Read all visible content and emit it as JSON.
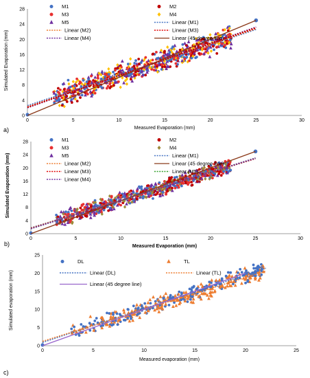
{
  "chart_data": [
    {
      "panel_label": "a)",
      "type": "scatter",
      "xlabel": "Measured Evaporation (mm)",
      "ylabel": "Simulated Evaporation (mm)",
      "xlim": [
        0,
        30
      ],
      "ylim": [
        0,
        28
      ],
      "xticks": [
        0,
        5,
        10,
        15,
        20,
        25,
        30
      ],
      "yticks": [
        0,
        4,
        8,
        12,
        16,
        20,
        24,
        28
      ],
      "grid": false,
      "legend_placement": "top",
      "series": [
        {
          "name": "M1",
          "kind": "scatter",
          "marker": "circle",
          "color": "#4472C4",
          "fit": [
            0.8,
            2.6
          ],
          "spread": 1.6
        },
        {
          "name": "M2",
          "kind": "scatter",
          "marker": "circle",
          "color": "#C00000",
          "fit": [
            0.82,
            2.3
          ],
          "spread": 1.6
        },
        {
          "name": "M3",
          "kind": "scatter",
          "marker": "circle",
          "color": "#E83030",
          "fit": [
            0.83,
            2.2
          ],
          "spread": 1.6
        },
        {
          "name": "M4",
          "kind": "scatter",
          "marker": "diamond",
          "color": "#FFC000",
          "fit": [
            0.85,
            2.0
          ],
          "spread": 1.7
        },
        {
          "name": "M5",
          "kind": "scatter",
          "marker": "triangle",
          "color": "#7030A0",
          "fit": [
            0.84,
            2.1
          ],
          "spread": 1.9
        },
        {
          "name": "Linear (M1)",
          "kind": "line",
          "dash": "dotted",
          "color": "#4472C4",
          "slope": 0.8,
          "intercept": 2.6,
          "x_range": [
            0,
            25
          ]
        },
        {
          "name": "Linear (M2)",
          "kind": "line",
          "dash": "dotted",
          "color": "#ED7D31",
          "slope": 0.82,
          "intercept": 2.3,
          "x_range": [
            0,
            25
          ]
        },
        {
          "name": "Linear (M3)",
          "kind": "line",
          "dash": "dotted",
          "color": "#E00000",
          "slope": 0.83,
          "intercept": 2.2,
          "x_range": [
            0,
            25
          ]
        },
        {
          "name": "Linear (M4)",
          "kind": "line",
          "dash": "dotted",
          "color": "#7030A0",
          "slope": 0.85,
          "intercept": 2.0,
          "x_range": [
            0,
            25
          ]
        },
        {
          "name": "Linear (M5)",
          "kind": "line",
          "dash": "dotted",
          "color": "#C00000",
          "slope": 0.84,
          "intercept": 2.1,
          "x_range": [
            0,
            25
          ],
          "legend": false
        },
        {
          "name": "Linear (45 degree line)",
          "kind": "line",
          "dash": "solid",
          "color": "#8B3A1A",
          "slope": 1,
          "intercept": 0,
          "x_range": [
            0,
            25
          ]
        }
      ]
    },
    {
      "panel_label": "b)",
      "type": "scatter",
      "xlabel": "Measured Evaporation (mm)",
      "ylabel": "Simulated Evaporation (mm)",
      "bold_titles": true,
      "xlim": [
        0,
        30
      ],
      "ylim": [
        0,
        28
      ],
      "xticks": [
        0,
        5,
        10,
        15,
        20,
        25,
        30
      ],
      "yticks": [
        0,
        4,
        8,
        12,
        16,
        20,
        24,
        28
      ],
      "grid": false,
      "legend_placement": "top",
      "series": [
        {
          "name": "M1",
          "kind": "scatter",
          "marker": "circle",
          "color": "#4472C4",
          "fit": [
            0.84,
            1.8
          ],
          "spread": 1.3
        },
        {
          "name": "M2",
          "kind": "scatter",
          "marker": "circle",
          "color": "#C00000",
          "fit": [
            0.85,
            1.7
          ],
          "spread": 1.3
        },
        {
          "name": "M3",
          "kind": "scatter",
          "marker": "circle",
          "color": "#E83030",
          "fit": [
            0.85,
            1.6
          ],
          "spread": 1.3
        },
        {
          "name": "M4",
          "kind": "scatter",
          "marker": "diamond",
          "color": "#9C8A3A",
          "fit": [
            0.86,
            1.5
          ],
          "spread": 1.3
        },
        {
          "name": "M5",
          "kind": "scatter",
          "marker": "triangle",
          "color": "#7030A0",
          "fit": [
            0.86,
            1.5
          ],
          "spread": 1.5
        },
        {
          "name": "Linear (M1)",
          "kind": "line",
          "dash": "dotted",
          "color": "#4472C4",
          "slope": 0.84,
          "intercept": 1.8,
          "x_range": [
            0,
            25
          ]
        },
        {
          "name": "Linear (M2)",
          "kind": "line",
          "dash": "dotted",
          "color": "#ED7D31",
          "slope": 0.85,
          "intercept": 1.7,
          "x_range": [
            0,
            25
          ]
        },
        {
          "name": "Linear (45 degree line)",
          "kind": "line",
          "dash": "solid",
          "color": "#8B3A1A",
          "slope": 1,
          "intercept": 0,
          "x_range": [
            0,
            25
          ]
        },
        {
          "name": "Linear (M3)",
          "kind": "line",
          "dash": "dotted",
          "color": "#E00000",
          "slope": 0.85,
          "intercept": 1.6,
          "x_range": [
            0,
            25
          ]
        },
        {
          "name": "Linear (M5)",
          "kind": "line",
          "dash": "dotted",
          "color": "#33A02C",
          "slope": 0.86,
          "intercept": 1.5,
          "x_range": [
            0,
            25
          ]
        },
        {
          "name": "Linear (M4)",
          "kind": "line",
          "dash": "dotted",
          "color": "#7030A0",
          "slope": 0.86,
          "intercept": 1.5,
          "x_range": [
            0,
            25
          ]
        }
      ]
    },
    {
      "panel_label": "c)",
      "type": "scatter",
      "xlabel": "Measured evaporation (mm)",
      "ylabel": "Simulated evaporation (mm)",
      "xlim": [
        0,
        25
      ],
      "ylim": [
        0,
        25
      ],
      "xticks": [
        0,
        5,
        10,
        15,
        20,
        25
      ],
      "yticks": [
        0,
        5,
        10,
        15,
        20,
        25
      ],
      "grid": false,
      "legend_placement": "top",
      "series": [
        {
          "name": "DL",
          "kind": "scatter",
          "marker": "circle",
          "color": "#4472C4",
          "fit": [
            0.93,
            0.9
          ],
          "spread": 1.2
        },
        {
          "name": "TL",
          "kind": "scatter",
          "marker": "triangle",
          "color": "#ED7D31",
          "fit": [
            0.88,
            1.2
          ],
          "spread": 1.4
        },
        {
          "name": "Linear (DL)",
          "kind": "line",
          "dash": "dotted",
          "color": "#4472C4",
          "slope": 0.93,
          "intercept": 0.9,
          "x_range": [
            0,
            22
          ]
        },
        {
          "name": "Linear (TL)",
          "kind": "line",
          "dash": "dotted",
          "color": "#ED7D31",
          "slope": 0.88,
          "intercept": 1.2,
          "x_range": [
            0,
            22
          ]
        },
        {
          "name": "Linear (45 degree line)",
          "kind": "line",
          "dash": "solid",
          "color": "#9966CC",
          "slope": 1,
          "intercept": 0,
          "x_range": [
            0,
            20
          ]
        }
      ]
    }
  ]
}
